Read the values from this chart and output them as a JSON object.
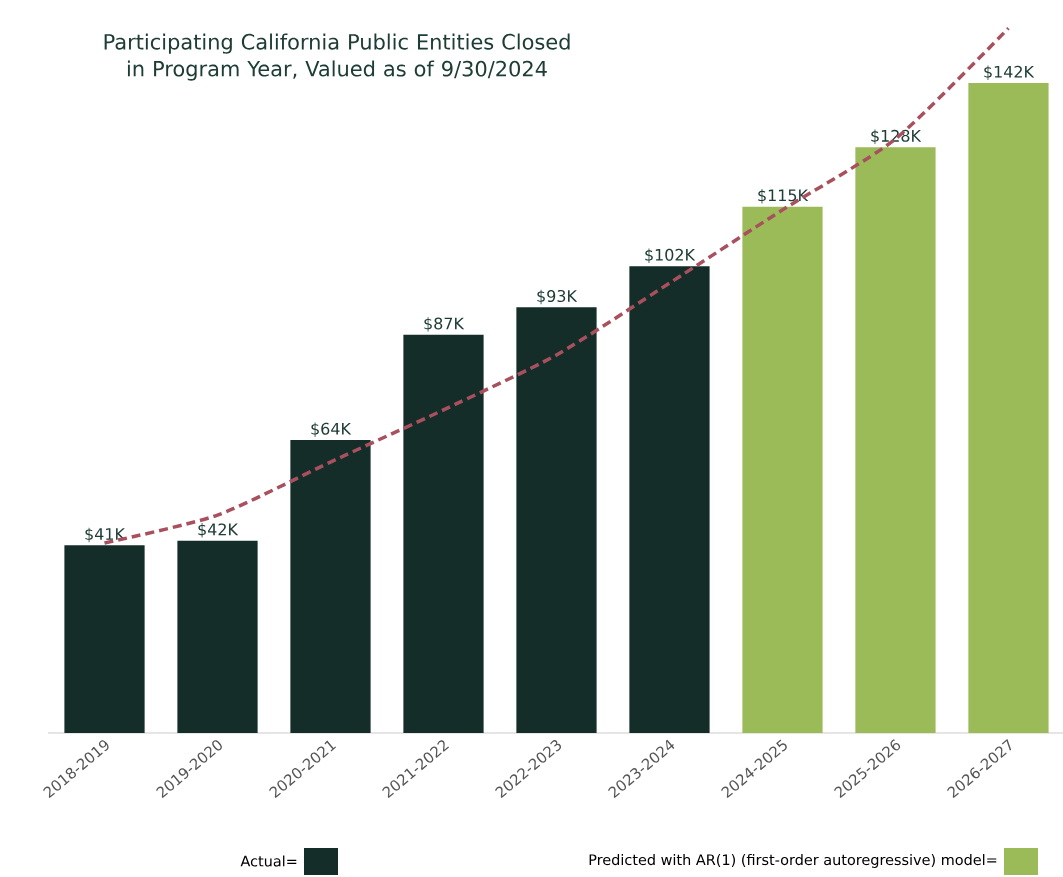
{
  "chart_data": {
    "type": "bar",
    "title": "Participating California Public Entities Closed in Program Year, Valued as of 9/30/2024",
    "categories": [
      "2018-2019",
      "2019-2020",
      "2020-2021",
      "2021-2022",
      "2022-2023",
      "2023-2024",
      "2024-2025",
      "2025-2026",
      "2026-2027"
    ],
    "legend": "bottom",
    "grid": false,
    "series": [
      {
        "name": "Actual=",
        "color": "#152d29",
        "values": [
          41,
          42,
          64,
          87,
          93,
          102,
          null,
          null,
          null
        ],
        "value_labels": [
          "$41K",
          "$42K",
          "$64K",
          "$87K",
          "$93K",
          "$102K",
          null,
          null,
          null
        ]
      },
      {
        "name": "Predicted with AR(1) (first-order autoregressive) model=",
        "color": "#9bbb59",
        "values": [
          null,
          null,
          null,
          null,
          null,
          null,
          115,
          128,
          142
        ],
        "value_labels": [
          null,
          null,
          null,
          null,
          null,
          null,
          "$115K",
          "$128K",
          "$142K"
        ]
      },
      {
        "type": "line",
        "color": "#a8505e",
        "line_style": "dashed",
        "values": [
          41.5,
          47.6,
          59.2,
          70.6,
          82.6,
          98.3,
          114.3,
          129.8,
          154
        ]
      }
    ]
  }
}
